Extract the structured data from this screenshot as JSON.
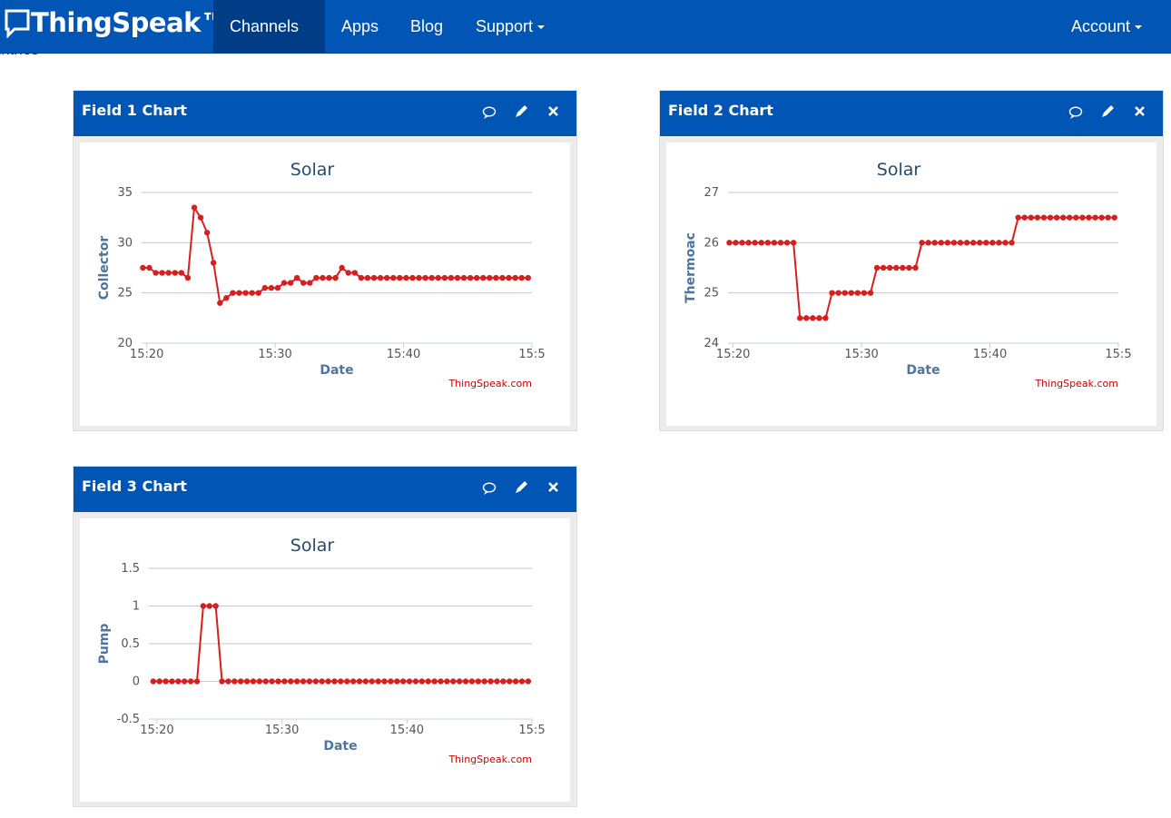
{
  "nav": {
    "brand": "ThingSpeak™",
    "items": [
      "Channels",
      "Apps",
      "Blog",
      "Support"
    ],
    "account": "Account"
  },
  "entries": "Entries",
  "chart_data": [
    {
      "type": "line",
      "panel_title": "Field 1 Chart",
      "title": "Solar",
      "x_label": "Date",
      "y_label": "Collector",
      "credit": "ThingSpeak.com",
      "color": "#d62020",
      "x": [
        19.7,
        20.2,
        20.7,
        21.2,
        21.7,
        22.2,
        22.7,
        23.2,
        23.7,
        24.2,
        24.7,
        25.2,
        25.7,
        26.2,
        26.7,
        27.2,
        27.7,
        28.2,
        28.7,
        29.2,
        29.7,
        30.2,
        30.7,
        31.2,
        31.7,
        32.2,
        32.7,
        33.2,
        33.7,
        34.2,
        34.7,
        35.2,
        35.7,
        36.2,
        36.7,
        37.2,
        37.7,
        38.2,
        38.7,
        39.2,
        39.7,
        40.2,
        40.7,
        41.2,
        41.7,
        42.2,
        42.7,
        43.2,
        43.7,
        44.2,
        44.7,
        45.2,
        45.7,
        46.2,
        46.7,
        47.2,
        47.7,
        48.2,
        48.7,
        49.2,
        49.7
      ],
      "values": [
        27.5,
        27.5,
        27,
        27,
        27,
        27,
        27,
        26.5,
        33.5,
        32.5,
        31,
        28,
        24,
        24.5,
        25,
        25,
        25,
        25,
        25,
        25.5,
        25.5,
        25.5,
        26,
        26,
        26.5,
        26,
        26,
        26.5,
        26.5,
        26.5,
        26.5,
        27.5,
        27,
        27,
        26.5,
        26.5,
        26.5,
        26.5,
        26.5,
        26.5,
        26.5,
        26.5,
        26.5,
        26.5,
        26.5,
        26.5,
        26.5,
        26.5,
        26.5,
        26.5,
        26.5,
        26.5,
        26.5,
        26.5,
        26.5,
        26.5,
        26.5,
        26.5,
        26.5,
        26.5,
        26.5
      ],
      "xlim": [
        19.6,
        50
      ],
      "ylim": [
        20,
        35
      ],
      "yticks": [
        20,
        25,
        30,
        35
      ],
      "xticks": [
        {
          "value": 20,
          "label": "15:20"
        },
        {
          "value": 30,
          "label": "15:30"
        },
        {
          "value": 40,
          "label": "15:40"
        },
        {
          "value": 50,
          "label": "15:5"
        }
      ],
      "grid": true
    },
    {
      "type": "line",
      "panel_title": "Field 2 Chart",
      "title": "Solar",
      "x_label": "Date",
      "y_label": "Thermoac",
      "credit": "ThingSpeak.com",
      "color": "#d62020",
      "x": [
        19.7,
        20.2,
        20.7,
        21.2,
        21.7,
        22.2,
        22.7,
        23.2,
        23.7,
        24.2,
        24.7,
        25.2,
        25.7,
        26.2,
        26.7,
        27.2,
        27.7,
        28.2,
        28.7,
        29.2,
        29.7,
        30.2,
        30.7,
        31.2,
        31.7,
        32.2,
        32.7,
        33.2,
        33.7,
        34.2,
        34.7,
        35.2,
        35.7,
        36.2,
        36.7,
        37.2,
        37.7,
        38.2,
        38.7,
        39.2,
        39.7,
        40.2,
        40.7,
        41.2,
        41.7,
        42.2,
        42.7,
        43.2,
        43.7,
        44.2,
        44.7,
        45.2,
        45.7,
        46.2,
        46.7,
        47.2,
        47.7,
        48.2,
        48.7,
        49.2,
        49.7
      ],
      "values": [
        26,
        26,
        26,
        26,
        26,
        26,
        26,
        26,
        26,
        26,
        26,
        24.5,
        24.5,
        24.5,
        24.5,
        24.5,
        25,
        25,
        25,
        25,
        25,
        25,
        25,
        25.5,
        25.5,
        25.5,
        25.5,
        25.5,
        25.5,
        25.5,
        26,
        26,
        26,
        26,
        26,
        26,
        26,
        26,
        26,
        26,
        26,
        26,
        26,
        26,
        26,
        26.5,
        26.5,
        26.5,
        26.5,
        26.5,
        26.5,
        26.5,
        26.5,
        26.5,
        26.5,
        26.5,
        26.5,
        26.5,
        26.5,
        26.5,
        26.5
      ],
      "xlim": [
        19.6,
        50
      ],
      "ylim": [
        24,
        27
      ],
      "yticks": [
        24,
        25,
        26,
        27
      ],
      "xticks": [
        {
          "value": 20,
          "label": "15:20"
        },
        {
          "value": 30,
          "label": "15:30"
        },
        {
          "value": 40,
          "label": "15:40"
        },
        {
          "value": 50,
          "label": "15:5"
        }
      ],
      "grid": true
    },
    {
      "type": "line",
      "panel_title": "Field 3 Chart",
      "title": "Solar",
      "x_label": "Date",
      "y_label": "Pump",
      "credit": "ThingSpeak.com",
      "color": "#d62020",
      "x": [
        19.7,
        20.2,
        20.7,
        21.2,
        21.7,
        22.2,
        22.7,
        23.2,
        23.7,
        24.2,
        24.7,
        25.2,
        25.7,
        26.2,
        26.7,
        27.2,
        27.7,
        28.2,
        28.7,
        29.2,
        29.7,
        30.2,
        30.7,
        31.2,
        31.7,
        32.2,
        32.7,
        33.2,
        33.7,
        34.2,
        34.7,
        35.2,
        35.7,
        36.2,
        36.7,
        37.2,
        37.7,
        38.2,
        38.7,
        39.2,
        39.7,
        40.2,
        40.7,
        41.2,
        41.7,
        42.2,
        42.7,
        43.2,
        43.7,
        44.2,
        44.7,
        45.2,
        45.7,
        46.2,
        46.7,
        47.2,
        47.7,
        48.2,
        48.7,
        49.2,
        49.7
      ],
      "values": [
        0,
        0,
        0,
        0,
        0,
        0,
        0,
        0,
        1,
        1,
        1,
        0,
        0,
        0,
        0,
        0,
        0,
        0,
        0,
        0,
        0,
        0,
        0,
        0,
        0,
        0,
        0,
        0,
        0,
        0,
        0,
        0,
        0,
        0,
        0,
        0,
        0,
        0,
        0,
        0,
        0,
        0,
        0,
        0,
        0,
        0,
        0,
        0,
        0,
        0,
        0,
        0,
        0,
        0,
        0,
        0,
        0,
        0,
        0,
        0,
        0
      ],
      "xlim": [
        19.35,
        50
      ],
      "ylim": [
        -0.5,
        1.5
      ],
      "yticks": [
        -0.5,
        0,
        0.5,
        1,
        1.5
      ],
      "xticks": [
        {
          "value": 20,
          "label": "15:20"
        },
        {
          "value": 30,
          "label": "15:30"
        },
        {
          "value": 40,
          "label": "15:40"
        },
        {
          "value": 50,
          "label": "15:5"
        }
      ],
      "grid": true
    }
  ]
}
